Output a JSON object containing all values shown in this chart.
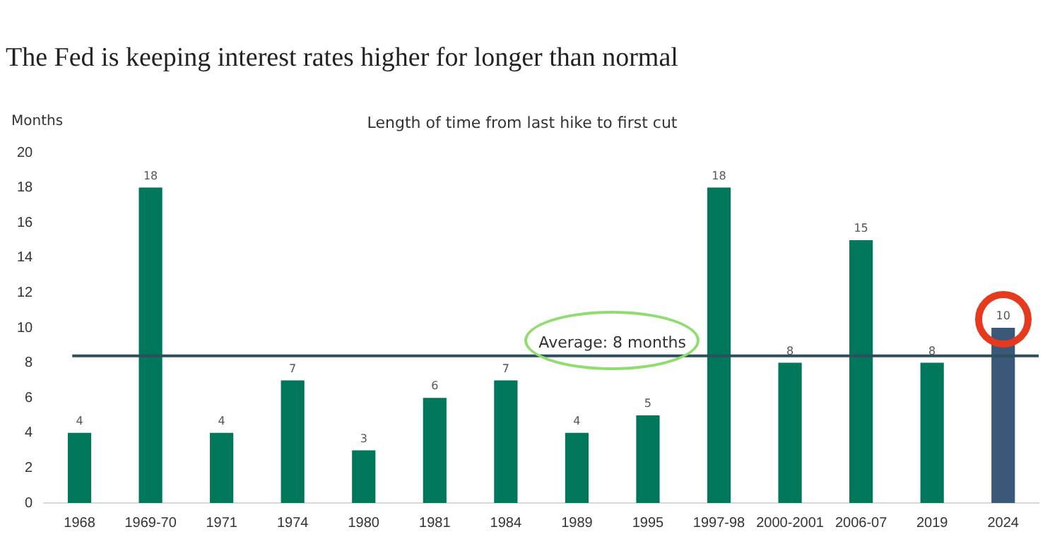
{
  "chart_data": {
    "type": "bar",
    "title": "The Fed is keeping interest rates higher for longer than normal",
    "subtitle": "Length of time from last hike to first cut",
    "ylabel": "Months",
    "categories": [
      "1968",
      "1969-70",
      "1971",
      "1974",
      "1980",
      "1981",
      "1984",
      "1989",
      "1995",
      "1997-98",
      "2000-2001",
      "2006-07",
      "2019",
      "2024"
    ],
    "values": [
      4,
      18,
      4,
      7,
      3,
      6,
      7,
      4,
      5,
      18,
      8,
      15,
      8,
      10
    ],
    "colors": [
      "#00765a",
      "#00765a",
      "#00765a",
      "#00765a",
      "#00765a",
      "#00765a",
      "#00765a",
      "#00765a",
      "#00765a",
      "#00765a",
      "#00765a",
      "#00765a",
      "#00765a",
      "#3a5878"
    ],
    "ylim": [
      0,
      20
    ],
    "yticks": [
      0,
      2,
      4,
      6,
      8,
      10,
      12,
      14,
      16,
      18,
      20
    ],
    "grid": false,
    "legend": false,
    "data_labels": true,
    "ref_lines": [
      {
        "axis": "y",
        "value": 8.4,
        "label": "Average: 8 months",
        "color": "#2f4f5f"
      }
    ]
  }
}
